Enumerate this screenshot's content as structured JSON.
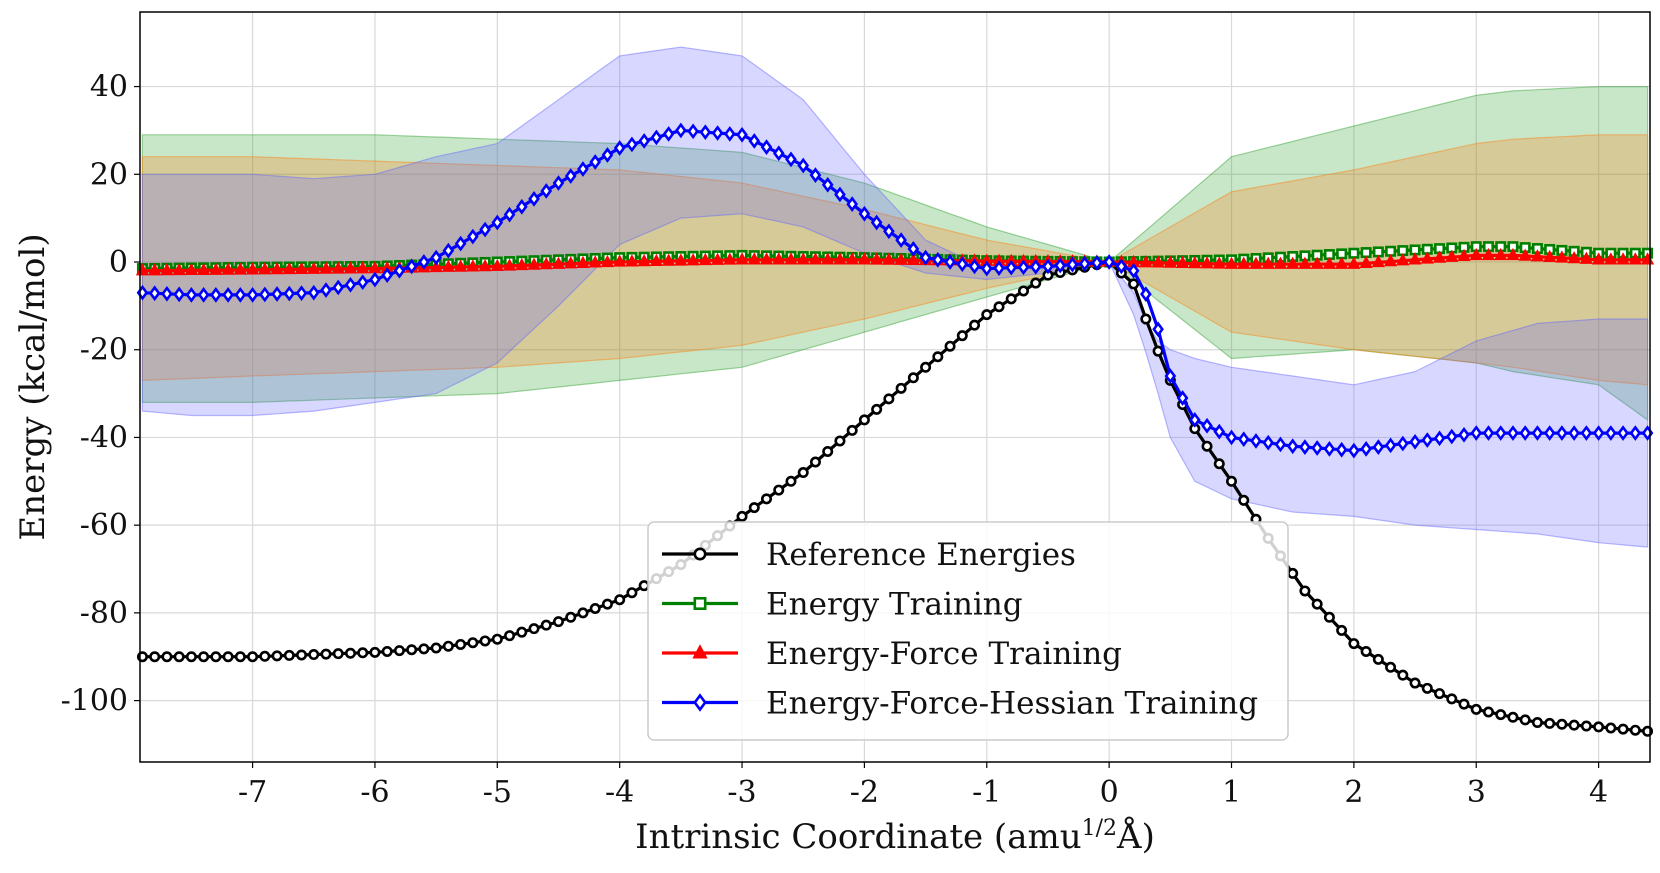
{
  "chart_data": {
    "type": "line",
    "title": "",
    "xlabel": "Intrinsic Coordinate (amu",
    "xlabel_superscript": "1/2",
    "xlabel_suffix": "Å)",
    "ylabel": "Energy (kcal/mol)",
    "xlim": [
      -7.92,
      4.42
    ],
    "ylim": [
      -114,
      57
    ],
    "xticks": [
      -7,
      -6,
      -5,
      -4,
      -3,
      -2,
      -1,
      0,
      1,
      2,
      3,
      4
    ],
    "yticks": [
      40,
      20,
      0,
      -20,
      -40,
      -60,
      -80,
      -100
    ],
    "xtick_labels": [
      "-7",
      "-6",
      "-5",
      "-4",
      "-3",
      "-2",
      "-1",
      "0",
      "1",
      "2",
      "3",
      "4"
    ],
    "ytick_labels": [
      "40",
      "20",
      "0",
      "-20",
      "-40",
      "-60",
      "-80",
      "-100"
    ],
    "grid": true,
    "legend_position": "lower-center",
    "series": [
      {
        "name": "Reference Energies",
        "color": "#000000",
        "marker": "circle",
        "x": [
          -7.9,
          -7,
          -6.5,
          -6,
          -5.5,
          -5,
          -4.5,
          -4,
          -3.5,
          -3,
          -2.5,
          -2,
          -1.5,
          -1,
          -0.5,
          0,
          0.2,
          0.35,
          0.5,
          0.7,
          1,
          1.3,
          1.6,
          2,
          2.5,
          3,
          3.5,
          4,
          4.4
        ],
        "y": [
          -90,
          -90,
          -89.5,
          -89,
          -88,
          -86,
          -82,
          -77,
          -69,
          -58,
          -48,
          -36,
          -24,
          -12,
          -3,
          0,
          -5,
          -17,
          -27,
          -38,
          -50,
          -63,
          -75,
          -87,
          -96,
          -102,
          -105,
          -106,
          -107
        ]
      },
      {
        "name": "Energy Training",
        "color": "#008000",
        "marker": "square",
        "x": [
          -7.9,
          -7,
          -6,
          -5,
          -4,
          -3,
          -2,
          -1,
          0,
          1,
          2,
          3,
          3.3,
          4,
          4.4
        ],
        "y": [
          -1.5,
          -1.2,
          -1,
          0,
          1,
          1.5,
          1,
          0.3,
          0,
          0.5,
          2,
          3.5,
          3.5,
          2,
          2
        ],
        "band_upper": [
          29,
          29,
          29,
          28,
          27,
          25,
          18,
          8,
          0,
          24,
          31,
          38,
          39,
          40,
          40
        ],
        "band_lower": [
          -32,
          -32,
          -31,
          -30,
          -27,
          -24,
          -16,
          -8,
          0,
          -22,
          -20,
          -23,
          -25,
          -28,
          -36
        ],
        "band_color": "#2ca02c"
      },
      {
        "name": "Energy-Force Training",
        "color": "#ff0000",
        "marker": "triangle",
        "x": [
          -7.9,
          -7,
          -6,
          -5,
          -4,
          -3,
          -2,
          -1,
          0,
          1,
          2,
          3,
          3.3,
          4,
          4.4
        ],
        "y": [
          -2,
          -1.8,
          -1.5,
          -1,
          0,
          0.5,
          0.5,
          0.2,
          0,
          -0.5,
          -0.5,
          1.5,
          1.5,
          0.5,
          0.5
        ],
        "band_upper": [
          24,
          24,
          23,
          22,
          21,
          18,
          12,
          5,
          0,
          16,
          21,
          27,
          28,
          29,
          29
        ],
        "band_lower": [
          -27,
          -26,
          -25,
          -24,
          -22,
          -19,
          -13,
          -6,
          0,
          -16,
          -20,
          -23,
          -24,
          -27,
          -28
        ],
        "band_color": "#ff7f0e"
      },
      {
        "name": "Energy-Force-Hessian Training",
        "color": "#0000ff",
        "marker": "diamond",
        "x": [
          -7.9,
          -7.5,
          -7,
          -6.5,
          -6,
          -5.5,
          -5,
          -4.5,
          -4,
          -3.5,
          -3,
          -2.5,
          -2,
          -1.5,
          -1,
          -0.5,
          0,
          0.2,
          0.35,
          0.5,
          0.7,
          1,
          1.5,
          2,
          2.5,
          3,
          3.5,
          4,
          4.4
        ],
        "y": [
          -7,
          -7.5,
          -7.5,
          -7,
          -4,
          1,
          9,
          18,
          26,
          30,
          29,
          22,
          11,
          1,
          -1.5,
          -1,
          0,
          -2,
          -10,
          -26,
          -36,
          -40,
          -42,
          -43,
          -41,
          -39,
          -39,
          -39,
          -39
        ],
        "band_upper": [
          20,
          20,
          20,
          19,
          20,
          24,
          27,
          37,
          47,
          49,
          47,
          37,
          20,
          5,
          -1.5,
          -1.5,
          0,
          -7,
          -17,
          -20,
          -22,
          -24,
          -26,
          -28,
          -25,
          -18,
          -14,
          -13,
          -13
        ],
        "band_lower": [
          -34,
          -35,
          -35,
          -34,
          -32,
          -30,
          -23,
          -10,
          4,
          10,
          11,
          8,
          2,
          -2.5,
          -4,
          -2.5,
          0,
          -12,
          -25,
          -40,
          -50,
          -54,
          -57,
          -58,
          -60,
          -61,
          -62,
          -64,
          -65
        ],
        "band_color": "#6464ff"
      }
    ]
  }
}
